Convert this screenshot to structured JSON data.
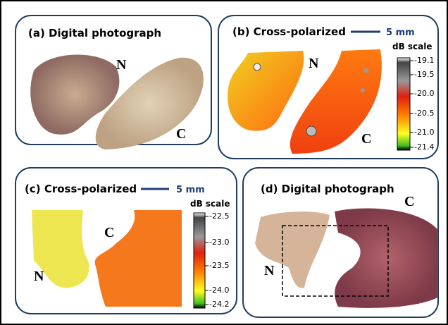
{
  "panels": [
    {
      "title": "(a) Digital photograph",
      "labels": [
        "N",
        "C"
      ]
    },
    {
      "title": "(b) Cross-polarized",
      "scale_bar": "5 mm",
      "labels": [
        "N",
        "C"
      ],
      "colorbar": {
        "title": "dB scale",
        "ticks": [
          "-19.1",
          "-19.5",
          "-20.0",
          "-20.5",
          "-21.0",
          "-21.4"
        ]
      }
    },
    {
      "title": "(c) Cross-polarized",
      "scale_bar": "5 mm",
      "labels": [
        "N",
        "C"
      ],
      "colorbar": {
        "title": "dB scale",
        "ticks": [
          "-22.5",
          "-23.0",
          "-23.5",
          "-24.0",
          "-24.2"
        ]
      }
    },
    {
      "title": "(d) Digital photograph",
      "labels": [
        "C",
        "N"
      ]
    }
  ]
}
